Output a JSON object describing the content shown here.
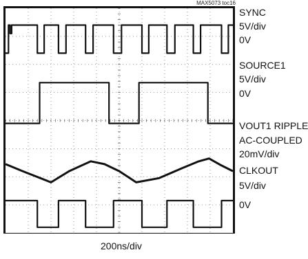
{
  "figure_id": "MAX5073 toc16",
  "time_scale": "200ns/div",
  "chart_data": {
    "type": "line",
    "title": "",
    "grid": true,
    "grid_divisions": {
      "x": 10,
      "y": 8
    },
    "x_unit": "ns",
    "x_range": [
      0,
      2000
    ],
    "series": [
      {
        "name": "SYNC",
        "scale": "5V/div",
        "ground": "0V",
        "levels_div": [
          2.4,
          3.4
        ],
        "x": [
          0,
          26,
          26,
          40,
          40,
          54,
          54,
          280,
          280,
          340,
          340,
          466,
          466,
          532,
          532,
          704,
          704,
          770,
          770,
          950,
          950,
          1020,
          1020,
          1200,
          1200,
          1260,
          1260,
          1420,
          1420,
          1490,
          1490,
          1652,
          1652,
          1716,
          1716,
          1900,
          1900,
          1960,
          1960,
          2000
        ],
        "y": [
          2.4,
          2.4,
          3.4,
          3.4,
          3.1,
          3.1,
          3.4,
          3.4,
          2.4,
          2.4,
          3.4,
          3.4,
          2.4,
          2.4,
          3.4,
          3.4,
          2.4,
          2.4,
          3.4,
          3.4,
          2.4,
          2.4,
          3.4,
          3.4,
          2.4,
          2.4,
          3.4,
          3.4,
          2.4,
          2.4,
          3.4,
          3.4,
          2.4,
          2.4,
          3.4,
          3.4,
          2.4,
          2.4,
          3.4,
          3.4
        ]
      },
      {
        "name": "SOURCE1",
        "scale": "5V/div",
        "ground": "0V",
        "levels_div": [
          -0.1,
          1.35
        ],
        "x": [
          0,
          300,
          300,
          910,
          910,
          1174,
          1174,
          1780,
          1780,
          2000
        ],
        "y": [
          -0.1,
          -0.1,
          1.35,
          1.35,
          -0.1,
          -0.1,
          1.35,
          1.35,
          -0.1,
          -0.1
        ]
      },
      {
        "name": "VOUT1 RIPPLE AC-COUPLED",
        "scale": "20mV/div",
        "x": [
          0,
          150,
          400,
          560,
          750,
          870,
          1000,
          1150,
          1350,
          1550,
          1700,
          1790,
          1900,
          2000
        ],
        "y": [
          -1.55,
          -1.8,
          -2.2,
          -1.8,
          -1.45,
          -1.55,
          -1.8,
          -2.2,
          -2.05,
          -1.7,
          -1.45,
          -1.35,
          -1.6,
          -1.8
        ]
      },
      {
        "name": "CLKOUT",
        "scale": "5V/div",
        "ground": "0V",
        "levels_div": [
          -3.8,
          -2.85
        ],
        "x": [
          0,
          280,
          280,
          466,
          466,
          704,
          704,
          950,
          950,
          1200,
          1200,
          1420,
          1420,
          1652,
          1652,
          1900,
          1900,
          2000
        ],
        "y": [
          -2.85,
          -2.85,
          -3.8,
          -3.8,
          -2.85,
          -2.85,
          -3.8,
          -3.8,
          -2.85,
          -2.85,
          -3.8,
          -3.8,
          -2.85,
          -2.85,
          -3.8,
          -3.8,
          -2.85,
          -2.85
        ]
      }
    ]
  },
  "labels": {
    "sync_name": "SYNC",
    "sync_scale": "5V/div",
    "sync_ground": "0V",
    "source_name": "SOURCE1",
    "source_scale": "5V/div",
    "source_ground": "0V",
    "vout_name": "VOUT1 RIPPLE",
    "vout_coupling": "AC-COUPLED",
    "vout_scale": "20mV/div",
    "clk_name": "CLKOUT",
    "clk_scale": "5V/div",
    "clk_ground": "0V"
  }
}
